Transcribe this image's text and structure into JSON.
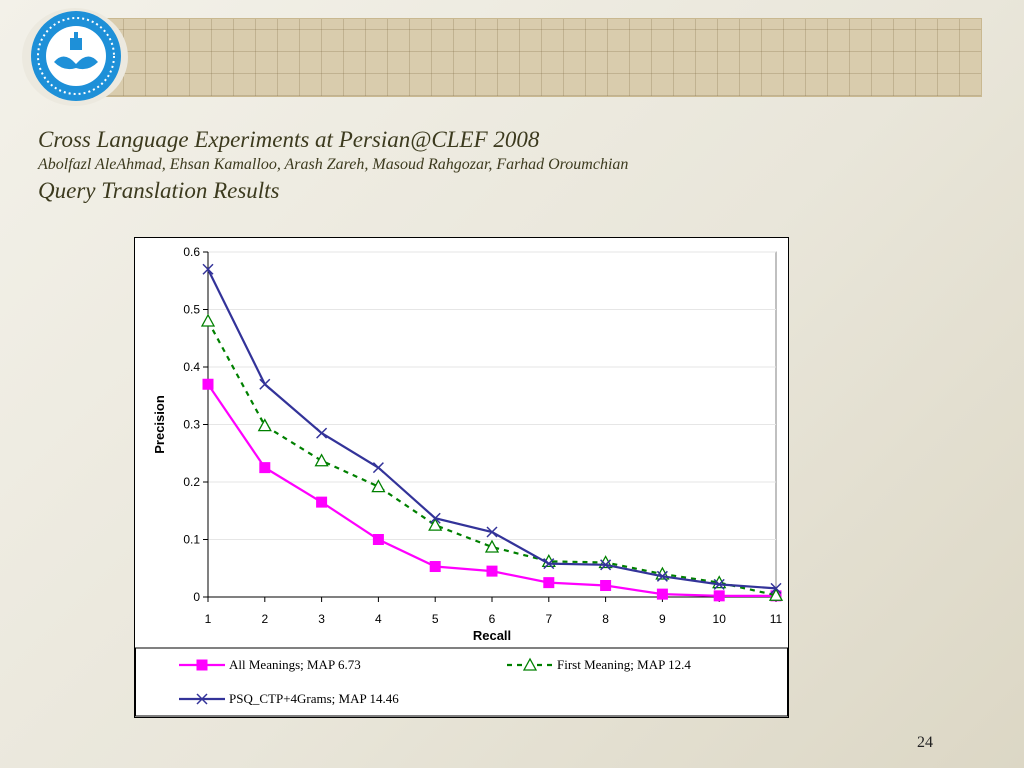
{
  "slide": {
    "title": "Cross Language Experiments at Persian@CLEF 2008",
    "authors": "Abolfazl AleAhmad, Ehsan Kamalloo, Arash Zareh, Masoud Rahgozar, Farhad Oroumchian",
    "subtitle": "Query Translation Results",
    "page_number": "24"
  },
  "chart_data": {
    "type": "line",
    "title": "",
    "xlabel": "Recall",
    "ylabel": "Precision",
    "x": [
      1,
      2,
      3,
      4,
      5,
      6,
      7,
      8,
      9,
      10,
      11
    ],
    "ylim": [
      0,
      0.6
    ],
    "yticks": [
      "0",
      "0.1",
      "0.2",
      "0.3",
      "0.4",
      "0.5",
      "0.6"
    ],
    "xticks": [
      "1",
      "2",
      "3",
      "4",
      "5",
      "6",
      "7",
      "8",
      "9",
      "10",
      "11"
    ],
    "grid": true,
    "legend_position": "bottom",
    "series": [
      {
        "name": "All Meanings; MAP 6.73",
        "values": [
          0.37,
          0.225,
          0.165,
          0.1,
          0.053,
          0.045,
          0.025,
          0.02,
          0.005,
          0.002,
          0.002
        ],
        "color": "#ff00ff",
        "marker": "square",
        "style": "solid"
      },
      {
        "name": "First Meaning; MAP 12.4",
        "values": [
          0.48,
          0.298,
          0.237,
          0.192,
          0.125,
          0.087,
          0.062,
          0.06,
          0.04,
          0.025,
          0.003
        ],
        "color": "#008000",
        "marker": "triangle",
        "style": "dashed"
      },
      {
        "name": "PSQ_CTP+4Grams; MAP 14.46",
        "values": [
          0.57,
          0.37,
          0.285,
          0.225,
          0.137,
          0.113,
          0.058,
          0.056,
          0.036,
          0.022,
          0.015
        ],
        "color": "#333399",
        "marker": "x",
        "style": "solid"
      }
    ]
  }
}
